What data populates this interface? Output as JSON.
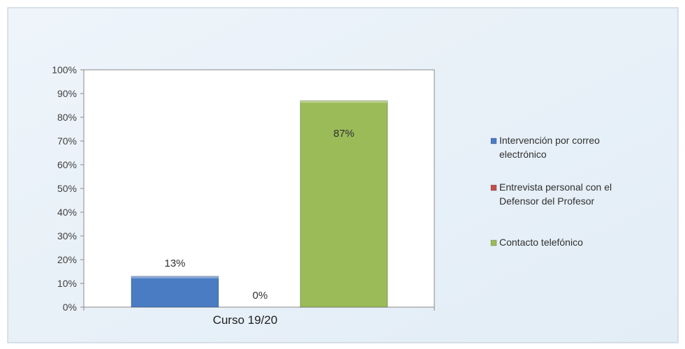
{
  "chart_data": {
    "type": "bar",
    "categories": [
      "Curso 19/20"
    ],
    "series": [
      {
        "name": "Intervención por correo electrónico",
        "values": [
          13
        ],
        "label": "13%",
        "color": "#4a7cc4"
      },
      {
        "name": "Entrevista personal con el Defensor del Profesor",
        "values": [
          0
        ],
        "label": "0%",
        "color": "#c0504d"
      },
      {
        "name": "Contacto telefónico",
        "values": [
          87
        ],
        "label": "87%",
        "color": "#9bbb59"
      }
    ],
    "ylim": [
      0,
      100
    ],
    "yticks": [
      "0%",
      "10%",
      "20%",
      "30%",
      "40%",
      "50%",
      "60%",
      "70%",
      "80%",
      "90%",
      "100%"
    ],
    "legend_lines": [
      [
        "Intervención por correo",
        "electrónico"
      ],
      [
        "Entrevista personal con el",
        "Defensor del Profesor"
      ],
      [
        "Contacto telefónico"
      ]
    ],
    "legend_position": "right",
    "grid": false
  }
}
